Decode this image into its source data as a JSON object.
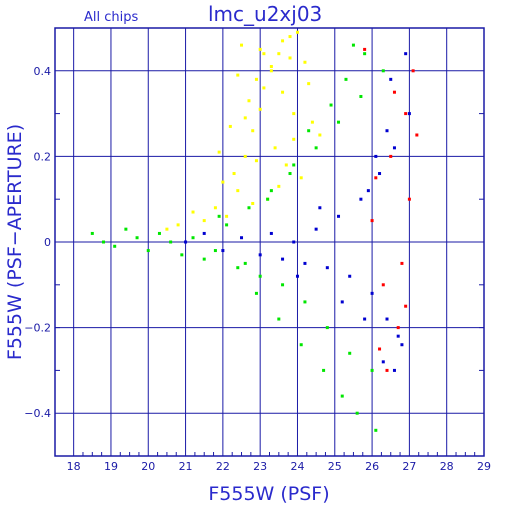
{
  "chart_data": {
    "type": "scatter",
    "title": "lmc_u2xj03",
    "subtitle": "All chips",
    "xlabel": "F555W (PSF)",
    "ylabel": "F555W (PSF−APERTURE)",
    "xlim": [
      17.5,
      29
    ],
    "ylim": [
      -0.5,
      0.5
    ],
    "x_ticks": [
      "18",
      "19",
      "20",
      "21",
      "22",
      "23",
      "24",
      "25",
      "26",
      "27",
      "28",
      "29"
    ],
    "y_ticks": [
      "0.4",
      "0.2",
      "0",
      "−0.2",
      "−0.4"
    ],
    "grid": true,
    "colors": {
      "frame": "#1a1aa6",
      "text": "#2a2acc",
      "yellow_series": "#ffff00",
      "green_series": "#00e600",
      "blue_series": "#0000d0",
      "red_series": "#ff0000"
    },
    "series": [
      {
        "color": "#ffff00",
        "x": [
          22.1,
          22.4,
          22.6,
          22.8,
          23.0,
          23.1,
          23.3,
          23.5,
          23.6,
          23.8,
          24.0,
          22.3,
          22.7,
          23.2,
          23.4,
          23.9,
          24.2,
          21.8,
          21.5,
          22.0,
          22.9,
          23.7,
          24.4,
          22.5,
          23.0,
          23.3,
          23.6,
          22.2,
          22.8,
          23.9,
          24.1,
          21.9,
          22.6,
          23.1,
          23.5,
          24.3,
          22.4,
          22.9,
          23.8,
          24.6,
          21.2,
          20.8,
          20.5
        ],
        "y": [
          0.06,
          0.12,
          0.2,
          0.26,
          0.31,
          0.36,
          0.4,
          0.44,
          0.47,
          0.48,
          0.49,
          0.16,
          0.33,
          0.1,
          0.22,
          0.3,
          0.42,
          0.08,
          0.05,
          0.14,
          0.38,
          0.18,
          0.28,
          0.46,
          0.45,
          0.41,
          0.35,
          0.27,
          0.09,
          0.24,
          0.15,
          0.21,
          0.29,
          0.44,
          0.13,
          0.37,
          0.39,
          0.19,
          0.43,
          0.25,
          0.07,
          0.04,
          0.03
        ]
      },
      {
        "color": "#00e600",
        "x": [
          18.5,
          18.8,
          19.1,
          19.4,
          19.7,
          20.0,
          20.3,
          20.6,
          20.9,
          21.2,
          21.5,
          21.8,
          22.1,
          22.4,
          22.7,
          23.0,
          23.3,
          23.6,
          23.9,
          24.2,
          24.5,
          24.8,
          25.1,
          25.4,
          25.7,
          26.0,
          26.3,
          22.9,
          23.5,
          24.1,
          24.7,
          25.2,
          25.6,
          26.1,
          24.3,
          24.9,
          25.3,
          25.8,
          23.2,
          23.8,
          22.6,
          21.9,
          25.5
        ],
        "y": [
          0.02,
          0.0,
          -0.01,
          0.03,
          0.01,
          -0.02,
          0.02,
          0.0,
          -0.03,
          0.01,
          -0.04,
          -0.02,
          0.04,
          -0.06,
          0.08,
          -0.08,
          0.12,
          -0.1,
          0.18,
          -0.14,
          0.22,
          -0.2,
          0.28,
          -0.26,
          0.34,
          -0.3,
          0.4,
          -0.12,
          -0.18,
          -0.24,
          -0.3,
          -0.36,
          -0.4,
          -0.44,
          0.26,
          0.32,
          0.38,
          0.44,
          0.1,
          0.16,
          -0.05,
          0.06,
          0.46
        ]
      },
      {
        "color": "#0000d0",
        "x": [
          21.0,
          21.5,
          22.0,
          22.5,
          23.0,
          23.3,
          23.6,
          23.9,
          24.2,
          24.5,
          24.8,
          25.1,
          25.4,
          25.7,
          26.0,
          26.2,
          26.4,
          26.6,
          26.8,
          27.0,
          26.5,
          26.9,
          26.3,
          26.7,
          25.9,
          26.1,
          24.0,
          24.6,
          25.2,
          25.8,
          26.4,
          26.6
        ],
        "y": [
          0.0,
          0.02,
          -0.02,
          0.01,
          -0.03,
          0.02,
          -0.04,
          0.0,
          -0.05,
          0.03,
          -0.06,
          0.06,
          -0.08,
          0.1,
          -0.12,
          0.16,
          -0.18,
          0.22,
          -0.24,
          0.3,
          0.38,
          0.44,
          -0.28,
          -0.22,
          0.12,
          0.2,
          -0.08,
          0.08,
          -0.14,
          -0.18,
          0.26,
          -0.3
        ]
      },
      {
        "color": "#ff0000",
        "x": [
          26.0,
          26.3,
          26.5,
          26.7,
          26.9,
          27.1,
          26.2,
          26.6,
          26.8,
          27.0,
          25.8,
          26.4,
          26.1,
          26.9,
          27.2
        ],
        "y": [
          0.05,
          -0.1,
          0.2,
          -0.2,
          0.3,
          0.4,
          -0.25,
          0.35,
          -0.05,
          0.1,
          0.45,
          -0.3,
          0.15,
          -0.15,
          0.25
        ]
      }
    ]
  }
}
